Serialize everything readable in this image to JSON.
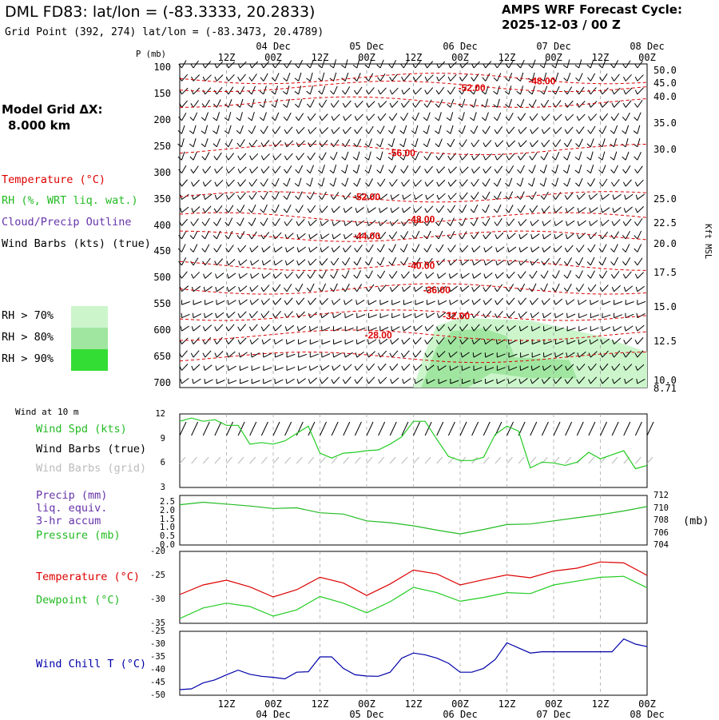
{
  "header": {
    "title": "DML FD83:  lat/lon = (-83.3333, 20.2833)",
    "subtitle": "Grid Point (392, 274) lat/lon = (-83.3473, 20.4789)",
    "cycle_line1": "AMPS WRF Forecast Cycle:",
    "cycle_line2": "2025-12-03 / 00  Z",
    "grid_label_1": "Model Grid ΔX:",
    "grid_label_2": "8.000 km"
  },
  "colors": {
    "temperature": "#dd0000",
    "rh": "#22bb22",
    "cloud": "#6633aa",
    "wind_speed": "#22cc22",
    "wind_barbs_grid": "#bbbbbb",
    "dewpoint": "#22cc22",
    "wind_chill": "#0000aa",
    "rh70": "#ccf5cc",
    "rh80": "#a0e6a0",
    "rh90": "#33dd33"
  },
  "legend": {
    "temperature": "Temperature (°C)",
    "rh": "RH (%, WRT liq. wat.)",
    "cloud": "Cloud/Precip Outline",
    "wind_barbs": "Wind Barbs (kts) (true)",
    "rh70": "RH > 70%",
    "rh80": "RH > 80%",
    "rh90": "RH > 90%"
  },
  "panel_labels": {
    "wind_at_10m": "Wind at 10 m",
    "wind_spd": "Wind Spd (kts)",
    "wind_barbs_true": "Wind Barbs (true)",
    "wind_barbs_grid": "Wind Barbs (grid)",
    "precip_1": "Precip (mm)",
    "precip_2": "liq. equiv.",
    "precip_3": "3-hr accum",
    "pressure": "Pressure (mb)",
    "pressure_unit": "(mb)",
    "temp": "Temperature (°C)",
    "dewpoint": "Dewpoint (°C)",
    "wind_chill": "Wind Chill T (°C)",
    "p_axis": "P (mb)",
    "kft_axis": "Kft MSL"
  },
  "time_axis": {
    "top_hours": [
      "12Z",
      "00Z",
      "12Z",
      "00Z",
      "12Z",
      "00Z",
      "12Z",
      "00Z",
      "12Z",
      "00Z"
    ],
    "bottom_hours": [
      "12Z",
      "00Z",
      "12Z",
      "00Z",
      "12Z",
      "00Z",
      "12Z",
      "00Z",
      "12Z",
      "00Z"
    ],
    "dates": [
      "04 Dec",
      "05 Dec",
      "06 Dec",
      "07 Dec",
      "08 Dec"
    ]
  },
  "chart_data": [
    {
      "type": "line",
      "panel": "cross-section",
      "y_axis_left": "P (mb)",
      "y_ticks_left": [
        100,
        150,
        200,
        250,
        300,
        350,
        400,
        450,
        500,
        550,
        600,
        650,
        700
      ],
      "y_ticks_right": [
        "50.0",
        "45.0",
        "40.0",
        "35.0",
        "30.0",
        "25.0",
        "22.5",
        "20.0",
        "17.5",
        "15.0",
        "12.5",
        "10.0",
        "8.71"
      ],
      "y_axis_right": "Kft MSL",
      "temperature_contours": [
        {
          "label": "-48.00",
          "level": -48,
          "x_hours": 93,
          "p": 125
        },
        {
          "label": "-52.00",
          "level": -52,
          "x_hours": 75,
          "p": 138
        },
        {
          "label": "-56.00",
          "level": -56,
          "x_hours": 57,
          "p": 262
        },
        {
          "label": "-52.00",
          "level": -52,
          "x_hours": 48,
          "p": 345
        },
        {
          "label": "-48.00",
          "level": -48,
          "x_hours": 62,
          "p": 388
        },
        {
          "label": "-44.00",
          "level": -44,
          "x_hours": 48,
          "p": 420
        },
        {
          "label": "-40.00",
          "level": -40,
          "x_hours": 62,
          "p": 476
        },
        {
          "label": "-36.00",
          "level": -36,
          "x_hours": 66,
          "p": 522
        },
        {
          "label": "-32.00",
          "level": -32,
          "x_hours": 71,
          "p": 572
        },
        {
          "label": "-28.00",
          "level": -28,
          "x_hours": 51,
          "p": 608
        }
      ],
      "rh_shading": "RH > 70% region spanning roughly 06 Dec 00Z to 07 Dec 18Z between 570 and 700 mb"
    },
    {
      "type": "line",
      "panel": "wind 10 m",
      "x_hours": [
        0,
        3,
        6,
        9,
        12,
        15,
        18,
        21,
        24,
        27,
        30,
        33,
        36,
        39,
        42,
        45,
        48,
        51,
        54,
        57,
        60,
        63,
        66,
        69,
        72,
        75,
        78,
        81,
        84,
        87,
        90,
        93,
        96,
        99,
        102,
        105,
        108,
        111,
        114,
        117,
        120
      ],
      "series": [
        {
          "name": "Wind Spd (kts)",
          "values": [
            11.1,
            11.5,
            11.1,
            11.3,
            10.6,
            10.6,
            8.3,
            8.5,
            8.3,
            8.7,
            9.6,
            10.5,
            7.2,
            6.6,
            7.2,
            7.3,
            7.5,
            7.6,
            8.3,
            9.2,
            11.1,
            11.1,
            8.9,
            6.8,
            6.3,
            6.3,
            6.7,
            9.5,
            10.5,
            9.9,
            5.4,
            6.1,
            6.0,
            5.7,
            6.1,
            7.3,
            6.5,
            7.0,
            7.5,
            5.3,
            5.7
          ]
        }
      ],
      "ylim": [
        3,
        12
      ],
      "y_ticks": [
        3,
        6,
        9,
        12
      ]
    },
    {
      "type": "line",
      "panel": "precip and pressure",
      "x_hours": [
        0,
        6,
        12,
        18,
        24,
        30,
        36,
        42,
        48,
        54,
        60,
        66,
        72,
        78,
        84,
        90,
        96,
        102,
        108,
        114,
        120
      ],
      "series": [
        {
          "name": "Pressure (mb)",
          "values": [
            710.5,
            710.9,
            710.6,
            710.3,
            709.9,
            710.0,
            709.2,
            709.0,
            707.9,
            707.6,
            707.1,
            706.4,
            705.8,
            706.5,
            707.3,
            707.4,
            707.9,
            708.4,
            708.9,
            709.5,
            710.2
          ]
        }
      ],
      "y_ticks_left": [
        0.0,
        0.5,
        1.0,
        1.5,
        2.0,
        2.5
      ],
      "y_ticks_right": [
        704,
        706,
        708,
        710,
        712
      ],
      "ylim_right": [
        704,
        712
      ]
    },
    {
      "type": "line",
      "panel": "temperature dewpoint",
      "x_hours": [
        0,
        6,
        12,
        18,
        24,
        30,
        36,
        42,
        48,
        54,
        60,
        66,
        72,
        78,
        84,
        90,
        96,
        102,
        108,
        114,
        120
      ],
      "series": [
        {
          "name": "Temperature (°C)",
          "values": [
            -29.0,
            -27.0,
            -26.0,
            -27.4,
            -29.5,
            -28.0,
            -25.4,
            -26.6,
            -29.2,
            -26.8,
            -23.9,
            -24.7,
            -27.0,
            -25.9,
            -24.9,
            -25.5,
            -24.1,
            -23.5,
            -22.2,
            -22.4,
            -25.0
          ]
        },
        {
          "name": "Dewpoint (°C)",
          "values": [
            -34.0,
            -31.8,
            -30.8,
            -31.5,
            -33.5,
            -32.2,
            -29.4,
            -30.8,
            -32.8,
            -30.5,
            -27.5,
            -28.6,
            -30.4,
            -29.6,
            -28.6,
            -28.8,
            -27.0,
            -26.2,
            -25.4,
            -25.2,
            -27.6
          ]
        }
      ],
      "ylim": [
        -35,
        -20
      ],
      "y_ticks": [
        -35,
        -30,
        -25,
        -20
      ]
    },
    {
      "type": "line",
      "panel": "wind chill",
      "x_hours": [
        0,
        3,
        6,
        9,
        12,
        15,
        18,
        21,
        24,
        27,
        30,
        33,
        36,
        39,
        42,
        45,
        48,
        51,
        54,
        57,
        60,
        63,
        66,
        69,
        72,
        75,
        78,
        81,
        84,
        87,
        90,
        93,
        96,
        99,
        102,
        105,
        108,
        111,
        114,
        117,
        120
      ],
      "series": [
        {
          "name": "Wind Chill T (°C)",
          "values": [
            -47.8,
            -47.5,
            -45.2,
            -44.0,
            -42.0,
            -40.2,
            -41.8,
            -42.6,
            -43.0,
            -43.6,
            -41.0,
            -40.8,
            -35.0,
            -35.0,
            -39.5,
            -42.0,
            -42.5,
            -42.6,
            -41.0,
            -35.5,
            -33.5,
            -34.2,
            -35.5,
            -37.5,
            -41.0,
            -41.0,
            -39.5,
            -36.0,
            -29.5,
            -31.5,
            -33.5,
            -33.0,
            -33.0,
            -33.0,
            -33.0,
            -33.0,
            -33.0,
            -33.0,
            -28.0,
            -30.0,
            -31.0
          ]
        }
      ],
      "ylim": [
        -50,
        -25
      ],
      "y_ticks": [
        -50,
        -45,
        -40,
        -35,
        -30,
        -25
      ]
    }
  ]
}
